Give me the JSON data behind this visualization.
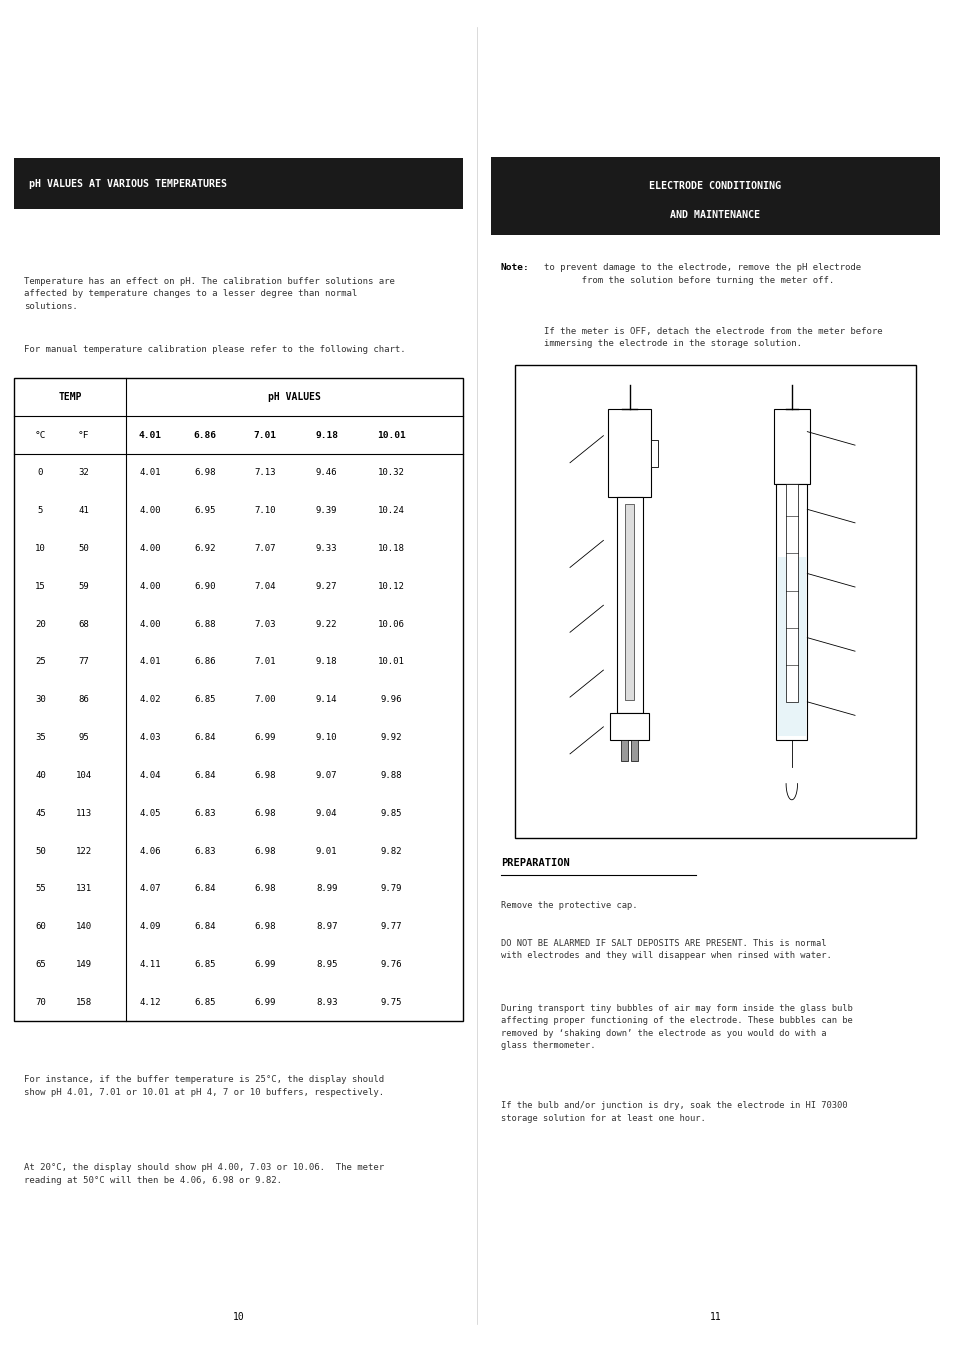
{
  "background_color": "#ffffff",
  "left_section": {
    "title": "pH VALUES AT VARIOUS TEMPERATURES",
    "title_bg": "#1a1a1a",
    "title_color": "#ffffff",
    "intro_text1": "Temperature has an effect on pH. The calibration buffer solutions are\naffected by temperature changes to a lesser degree than normal\nsolutions.",
    "intro_text2": "For manual temperature calibration please refer to the following chart.",
    "table_header_row1": [
      "TEMP",
      "",
      "pH VALUES",
      "",
      "",
      ""
    ],
    "table_header_row2": [
      "°C",
      "°F",
      "4.01",
      "6.86",
      "7.01",
      "9.18",
      "10.01"
    ],
    "table_data": [
      [
        0,
        32,
        4.01,
        6.98,
        7.13,
        9.46,
        10.32
      ],
      [
        5,
        41,
        4.0,
        6.95,
        7.1,
        9.39,
        10.24
      ],
      [
        10,
        50,
        4.0,
        6.92,
        7.07,
        9.33,
        10.18
      ],
      [
        15,
        59,
        4.0,
        6.9,
        7.04,
        9.27,
        10.12
      ],
      [
        20,
        68,
        4.0,
        6.88,
        7.03,
        9.22,
        10.06
      ],
      [
        25,
        77,
        4.01,
        6.86,
        7.01,
        9.18,
        10.01
      ],
      [
        30,
        86,
        4.02,
        6.85,
        7.0,
        9.14,
        9.96
      ],
      [
        35,
        95,
        4.03,
        6.84,
        6.99,
        9.1,
        9.92
      ],
      [
        40,
        104,
        4.04,
        6.84,
        6.98,
        9.07,
        9.88
      ],
      [
        45,
        113,
        4.05,
        6.83,
        6.98,
        9.04,
        9.85
      ],
      [
        50,
        122,
        4.06,
        6.83,
        6.98,
        9.01,
        9.82
      ],
      [
        55,
        131,
        4.07,
        6.84,
        6.98,
        8.99,
        9.79
      ],
      [
        60,
        140,
        4.09,
        6.84,
        6.98,
        8.97,
        9.77
      ],
      [
        65,
        149,
        4.11,
        6.85,
        6.99,
        8.95,
        9.76
      ],
      [
        70,
        158,
        4.12,
        6.85,
        6.99,
        8.93,
        9.75
      ]
    ],
    "footer_text1": "For instance, if the buffer temperature is 25°C, the display should\nshow pH 4.01, 7.01 or 10.01 at pH 4, 7 or 10 buffers, respectively.",
    "footer_text2": "At 20°C, the display should show pH 4.00, 7.03 or 10.06.  The meter\nreading at 50°C will then be 4.06, 6.98 or 9.82.",
    "page_number": "10"
  },
  "right_section": {
    "title_line1": "ELECTRODE CONDITIONING",
    "title_line2": "AND MAINTENANCE",
    "title_bg": "#1a1a1a",
    "title_color": "#ffffff",
    "note_bold": "Note:",
    "note_text1": " to prevent damage to the electrode, remove the pH electrode\n       from the solution before turning the meter off.",
    "note_text2": "If the meter is OFF, detach the electrode from the meter before\nimmersing the electrode in the storage solution.",
    "prep_title": "PREPARATION",
    "prep_text1": "Remove the protective cap.",
    "prep_text2": "DO NOT BE ALARMED IF SALT DEPOSITS ARE PRESENT. This is normal\nwith electrodes and they will disappear when rinsed with water.",
    "prep_text3": "During transport tiny bubbles of air may form inside the glass bulb\naffecting proper functioning of the electrode. These bubbles can be\nremoved by ‘shaking down’ the electrode as you would do with a\nglass thermometer.",
    "prep_text4": "If the bulb and/or junction is dry, soak the electrode in HI 70300\nstorage solution for at least one hour.",
    "page_number": "11"
  }
}
